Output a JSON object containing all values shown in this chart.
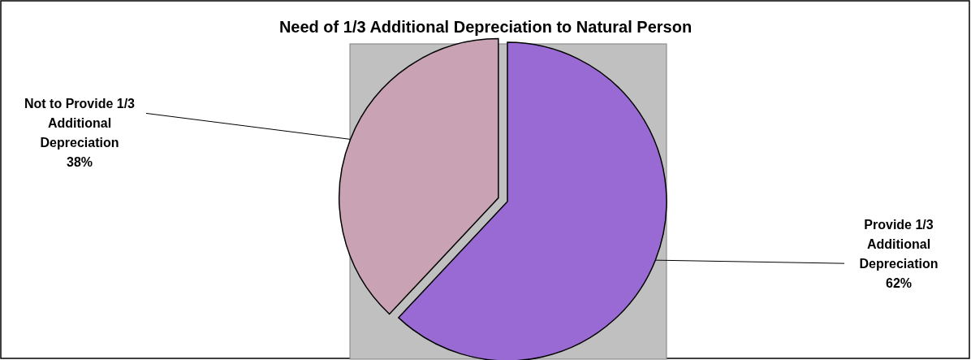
{
  "chart_data": {
    "type": "pie",
    "title": "Need of 1/3 Additional Depreciation to Natural Person",
    "categories": [
      "Provide 1/3 Additional Depreciation",
      "Not to Provide 1/3 Additional Depreciation"
    ],
    "values": [
      62,
      38
    ],
    "value_labels": [
      "62%",
      "38%"
    ],
    "colors": [
      "#9a6ad4",
      "#c9a3b3"
    ]
  }
}
